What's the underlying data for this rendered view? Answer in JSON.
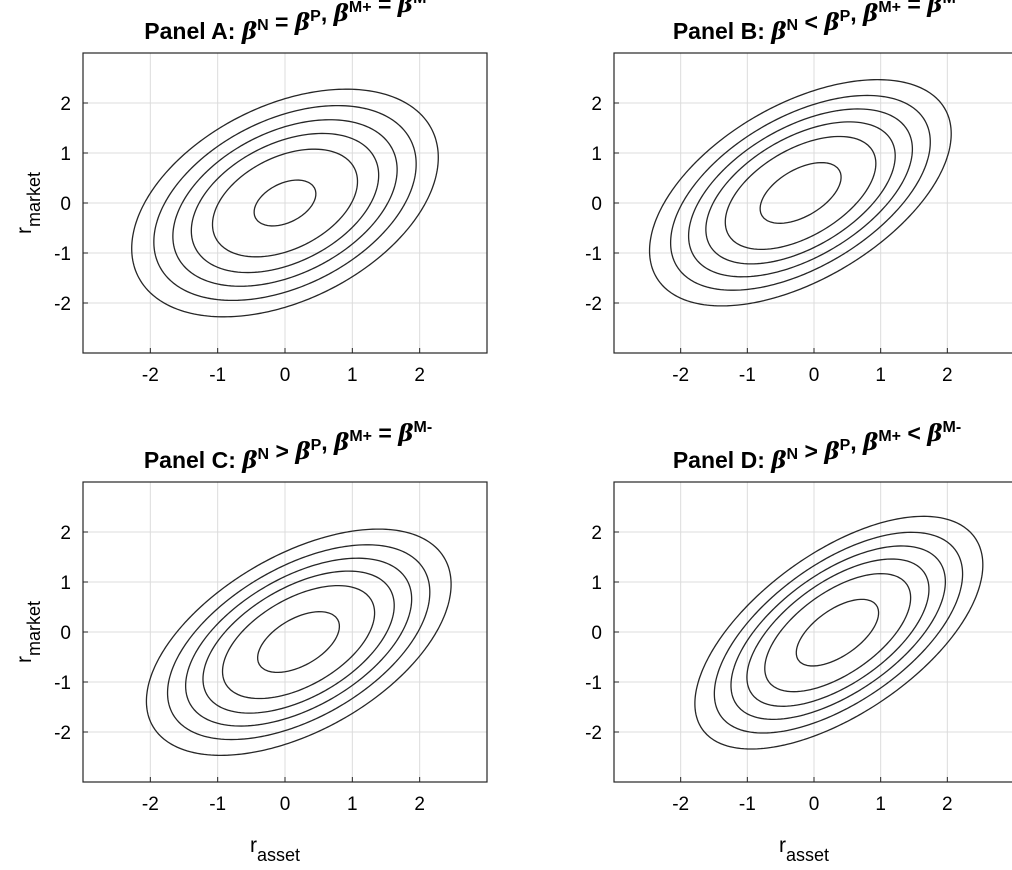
{
  "chart_data": [
    {
      "type": "contour",
      "title_segments": [
        {
          "t": "Panel A: ",
          "sym": false,
          "sup": ""
        },
        {
          "t": "β",
          "sym": true,
          "sup": "N"
        },
        {
          "t": " = ",
          "sym": false,
          "sup": ""
        },
        {
          "t": "β",
          "sym": true,
          "sup": "P"
        },
        {
          "t": ", ",
          "sym": false,
          "sup": ""
        },
        {
          "t": "β",
          "sym": true,
          "sup": "M+"
        },
        {
          "t": " = ",
          "sym": false,
          "sup": ""
        },
        {
          "t": "β",
          "sym": true,
          "sup": "M-"
        }
      ],
      "xlabel": "",
      "ylabel_base": "r",
      "ylabel_sub": "market",
      "xlim": [
        -3,
        3
      ],
      "ylim": [
        -3,
        3
      ],
      "xticks": [
        -2,
        -1,
        0,
        1,
        2
      ],
      "yticks": [
        -2,
        -1,
        0,
        1,
        2
      ],
      "grid": true,
      "model": {
        "rho": 0.4,
        "sa": 0,
        "sm": 0,
        "a": 0,
        "b": 0
      },
      "contour_levels": [
        0.075,
        0.15,
        0.25,
        0.38,
        0.56,
        0.9
      ]
    },
    {
      "type": "contour",
      "title_segments": [
        {
          "t": "Panel B: ",
          "sym": false,
          "sup": ""
        },
        {
          "t": "β",
          "sym": true,
          "sup": "N"
        },
        {
          "t": " < ",
          "sym": false,
          "sup": ""
        },
        {
          "t": "β",
          "sym": true,
          "sup": "P"
        },
        {
          "t": ", ",
          "sym": false,
          "sup": ""
        },
        {
          "t": "β",
          "sym": true,
          "sup": "M+"
        },
        {
          "t": " = ",
          "sym": false,
          "sup": ""
        },
        {
          "t": "β",
          "sym": true,
          "sup": "M-"
        }
      ],
      "xlabel": "",
      "ylabel_base": "",
      "ylabel_sub": "",
      "xlim": [
        -3,
        3
      ],
      "ylim": [
        -3,
        3
      ],
      "xticks": [
        -2,
        -1,
        0,
        1,
        2
      ],
      "yticks": [
        -2,
        -1,
        0,
        1,
        2
      ],
      "grid": true,
      "model": {
        "rho": 0.45,
        "sa": 0,
        "sm": 0,
        "a": 0.55,
        "b": 0
      },
      "contour_levels": [
        0.075,
        0.15,
        0.25,
        0.38,
        0.56,
        0.9
      ]
    },
    {
      "type": "contour",
      "title_segments": [
        {
          "t": "Panel C: ",
          "sym": false,
          "sup": ""
        },
        {
          "t": "β",
          "sym": true,
          "sup": "N"
        },
        {
          "t": " > ",
          "sym": false,
          "sup": ""
        },
        {
          "t": "β",
          "sym": true,
          "sup": "P"
        },
        {
          "t": ", ",
          "sym": false,
          "sup": ""
        },
        {
          "t": "β",
          "sym": true,
          "sup": "M+"
        },
        {
          "t": " = ",
          "sym": false,
          "sup": ""
        },
        {
          "t": "β",
          "sym": true,
          "sup": "M-"
        }
      ],
      "xlabel_base": "r",
      "xlabel_sub": "asset",
      "ylabel_base": "r",
      "ylabel_sub": "market",
      "xlim": [
        -3,
        3
      ],
      "ylim": [
        -3,
        3
      ],
      "xticks": [
        -2,
        -1,
        0,
        1,
        2
      ],
      "yticks": [
        -2,
        -1,
        0,
        1,
        2
      ],
      "grid": true,
      "model": {
        "rho": 0.45,
        "sa": 0,
        "sm": 0,
        "a": -0.55,
        "b": 0
      },
      "contour_levels": [
        0.075,
        0.15,
        0.25,
        0.38,
        0.56,
        0.9
      ]
    },
    {
      "type": "contour",
      "title_segments": [
        {
          "t": "Panel D: ",
          "sym": false,
          "sup": ""
        },
        {
          "t": "β",
          "sym": true,
          "sup": "N"
        },
        {
          "t": " > ",
          "sym": false,
          "sup": ""
        },
        {
          "t": "β",
          "sym": true,
          "sup": "P"
        },
        {
          "t": ", ",
          "sym": false,
          "sup": ""
        },
        {
          "t": "β",
          "sym": true,
          "sup": "M+"
        },
        {
          "t": " < ",
          "sym": false,
          "sup": ""
        },
        {
          "t": "β",
          "sym": true,
          "sup": "M-"
        }
      ],
      "xlabel_base": "r",
      "xlabel_sub": "asset",
      "ylabel_base": "",
      "ylabel_sub": "",
      "xlim": [
        -3,
        3
      ],
      "ylim": [
        -3,
        3
      ],
      "xticks": [
        -2,
        -1,
        0,
        1,
        2
      ],
      "yticks": [
        -2,
        -1,
        0,
        1,
        2
      ],
      "grid": true,
      "model": {
        "rho": 0.55,
        "sa": 0,
        "sm": 0,
        "a": -0.65,
        "b": 0.35
      },
      "contour_levels": [
        0.075,
        0.15,
        0.25,
        0.38,
        0.56,
        0.9
      ]
    }
  ]
}
